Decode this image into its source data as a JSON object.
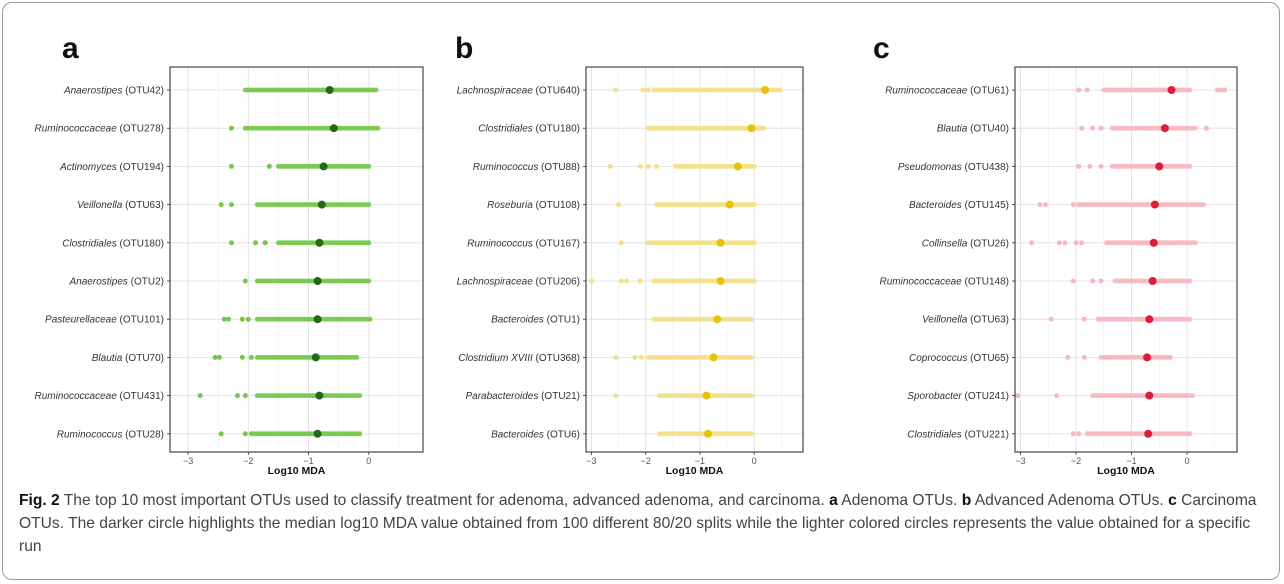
{
  "caption": {
    "fig_label": "Fig. 2",
    "intro": " The top 10 most important OTUs used to classify treatment for adenoma, advanced adenoma, and carcinoma. ",
    "a_letter": "a",
    "a_text": " Adenoma OTUs. ",
    "b_letter": "b",
    "b_text": " Advanced Adenoma OTUs. ",
    "c_letter": "c",
    "c_text": " Carcinoma OTUs. The darker circle highlights the median log10 MDA value obtained from 100 different 80/20 splits while the lighter colored circles represents the value obtained for a specific run"
  },
  "chart_data": [
    {
      "type": "scatter",
      "panel": "a",
      "xlabel": "Log10 MDA",
      "xlim": [
        -3.3,
        0.9
      ],
      "xticks": [
        -3,
        -2,
        -1,
        0
      ],
      "grid": true,
      "legend": "none",
      "colors": {
        "run": "#77c84a",
        "median": "#1f6b1a"
      },
      "rows": [
        {
          "taxon": "Anaerostipes",
          "otu": "(OTU42)",
          "median": -0.65,
          "min": -2.05,
          "max": 0.12,
          "isolated": []
        },
        {
          "taxon": "Ruminococcaceae",
          "otu": "(OTU278)",
          "median": -0.58,
          "min": -2.05,
          "max": 0.15,
          "isolated": [
            -2.28
          ]
        },
        {
          "taxon": "Actinomyces",
          "otu": "(OTU194)",
          "median": -0.75,
          "min": -1.5,
          "max": 0.0,
          "isolated": [
            -2.28,
            -1.65
          ]
        },
        {
          "taxon": "Veillonella",
          "otu": "(OTU63)",
          "median": -0.78,
          "min": -1.85,
          "max": 0.0,
          "isolated": [
            -2.45,
            -2.28
          ]
        },
        {
          "taxon": "Clostridiales",
          "otu": "(OTU180)",
          "median": -0.82,
          "min": -1.5,
          "max": 0.0,
          "isolated": [
            -2.28,
            -1.88,
            -1.72
          ]
        },
        {
          "taxon": "Anaerostipes",
          "otu": "(OTU2)",
          "median": -0.85,
          "min": -1.85,
          "max": 0.0,
          "isolated": [
            -2.05
          ]
        },
        {
          "taxon": "Pasteurellaceae",
          "otu": "(OTU101)",
          "median": -0.85,
          "min": -1.85,
          "max": 0.02,
          "isolated": [
            -2.4,
            -2.33,
            -2.1,
            -2.0
          ]
        },
        {
          "taxon": "Blautia",
          "otu": "(OTU70)",
          "median": -0.88,
          "min": -1.85,
          "max": -0.2,
          "isolated": [
            -2.55,
            -2.48,
            -2.1,
            -1.95
          ]
        },
        {
          "taxon": "Ruminococcaceae",
          "otu": "(OTU431)",
          "median": -0.82,
          "min": -1.85,
          "max": -0.15,
          "isolated": [
            -2.8,
            -2.18,
            -2.05
          ]
        },
        {
          "taxon": "Ruminococcus",
          "otu": "(OTU28)",
          "median": -0.85,
          "min": -1.95,
          "max": -0.15,
          "isolated": [
            -2.45,
            -2.05
          ]
        }
      ]
    },
    {
      "type": "scatter",
      "panel": "b",
      "xlabel": "Log10 MDA",
      "xlim": [
        -3.1,
        0.9
      ],
      "xticks": [
        -3,
        -2,
        -1,
        0
      ],
      "grid": true,
      "legend": "none",
      "colors": {
        "run": "#f3e08a",
        "median": "#e8c20a"
      },
      "rows": [
        {
          "taxon": "Lachnospiraceae",
          "otu": "(OTU640)",
          "median": 0.2,
          "min": -1.85,
          "max": 0.48,
          "isolated": [
            -2.55,
            -2.05,
            -1.95
          ]
        },
        {
          "taxon": "Clostridiales",
          "otu": "(OTU180)",
          "median": -0.05,
          "min": -1.95,
          "max": 0.18,
          "isolated": []
        },
        {
          "taxon": "Ruminococcus",
          "otu": "(OTU88)",
          "median": -0.3,
          "min": -1.45,
          "max": 0.0,
          "isolated": [
            -2.65,
            -2.1,
            -1.95,
            -1.8
          ]
        },
        {
          "taxon": "Roseburia",
          "otu": "(OTU108)",
          "median": -0.45,
          "min": -1.8,
          "max": 0.0,
          "isolated": [
            -2.5
          ]
        },
        {
          "taxon": "Ruminococcus",
          "otu": "(OTU167)",
          "median": -0.62,
          "min": -1.95,
          "max": 0.0,
          "isolated": [
            -2.45
          ]
        },
        {
          "taxon": "Lachnospiraceae",
          "otu": "(OTU206)",
          "median": -0.62,
          "min": -1.85,
          "max": 0.0,
          "isolated": [
            -3.0,
            -2.45,
            -2.35,
            -2.1
          ]
        },
        {
          "taxon": "Bacteroides",
          "otu": "(OTU1)",
          "median": -0.68,
          "min": -1.85,
          "max": -0.05,
          "isolated": []
        },
        {
          "taxon": "Clostridium XVIII",
          "otu": "(OTU368)",
          "median": -0.75,
          "min": -1.95,
          "max": -0.05,
          "isolated": [
            -2.55,
            -2.2,
            -2.08
          ]
        },
        {
          "taxon": "Parabacteroides",
          "otu": "(OTU21)",
          "median": -0.88,
          "min": -1.75,
          "max": -0.05,
          "isolated": [
            -2.55
          ]
        },
        {
          "taxon": "Bacteroides",
          "otu": "(OTU6)",
          "median": -0.85,
          "min": -1.75,
          "max": -0.05,
          "isolated": []
        }
      ]
    },
    {
      "type": "scatter",
      "panel": "c",
      "xlabel": "Log10 MDA",
      "xlim": [
        -3.1,
        0.9
      ],
      "xticks": [
        -3,
        -2,
        -1,
        0
      ],
      "grid": true,
      "legend": "none",
      "colors": {
        "run": "#f7b8c0",
        "median": "#dc1e3c"
      },
      "rows": [
        {
          "taxon": "Ruminococcaceae",
          "otu": "(OTU61)",
          "median": -0.28,
          "min": -1.5,
          "max": 0.05,
          "isolated": [
            -1.95,
            -1.8,
            0.55,
            0.62,
            0.68
          ]
        },
        {
          "taxon": "Blautia",
          "otu": "(OTU40)",
          "median": -0.4,
          "min": -1.35,
          "max": 0.15,
          "isolated": [
            -1.9,
            -1.7,
            -1.55,
            0.35
          ]
        },
        {
          "taxon": "Pseudomonas",
          "otu": "(OTU438)",
          "median": -0.5,
          "min": -1.35,
          "max": 0.05,
          "isolated": [
            -1.95,
            -1.75,
            -1.55
          ]
        },
        {
          "taxon": "Bacteroides",
          "otu": "(OTU145)",
          "median": -0.58,
          "min": -1.95,
          "max": 0.3,
          "isolated": [
            -2.65,
            -2.55,
            -2.05
          ]
        },
        {
          "taxon": "Collinsella",
          "otu": "(OTU26)",
          "median": -0.6,
          "min": -1.45,
          "max": 0.15,
          "isolated": [
            -2.8,
            -2.3,
            -2.2,
            -2.0,
            -1.9
          ]
        },
        {
          "taxon": "Ruminococcaceae",
          "otu": "(OTU148)",
          "median": -0.62,
          "min": -1.3,
          "max": 0.05,
          "isolated": [
            -2.05,
            -1.7,
            -1.55
          ]
        },
        {
          "taxon": "Veillonella",
          "otu": "(OTU63)",
          "median": -0.68,
          "min": -1.6,
          "max": 0.05,
          "isolated": [
            -2.45,
            -1.85
          ]
        },
        {
          "taxon": "Coprococcus",
          "otu": "(OTU65)",
          "median": -0.72,
          "min": -1.55,
          "max": -0.3,
          "isolated": [
            -2.15,
            -1.85
          ]
        },
        {
          "taxon": "Sporobacter",
          "otu": "(OTU241)",
          "median": -0.68,
          "min": -1.7,
          "max": 0.1,
          "isolated": [
            -3.05,
            -2.35
          ]
        },
        {
          "taxon": "Clostridiales",
          "otu": "(OTU221)",
          "median": -0.7,
          "min": -1.8,
          "max": 0.05,
          "isolated": [
            -2.05,
            -1.95
          ]
        }
      ]
    }
  ]
}
